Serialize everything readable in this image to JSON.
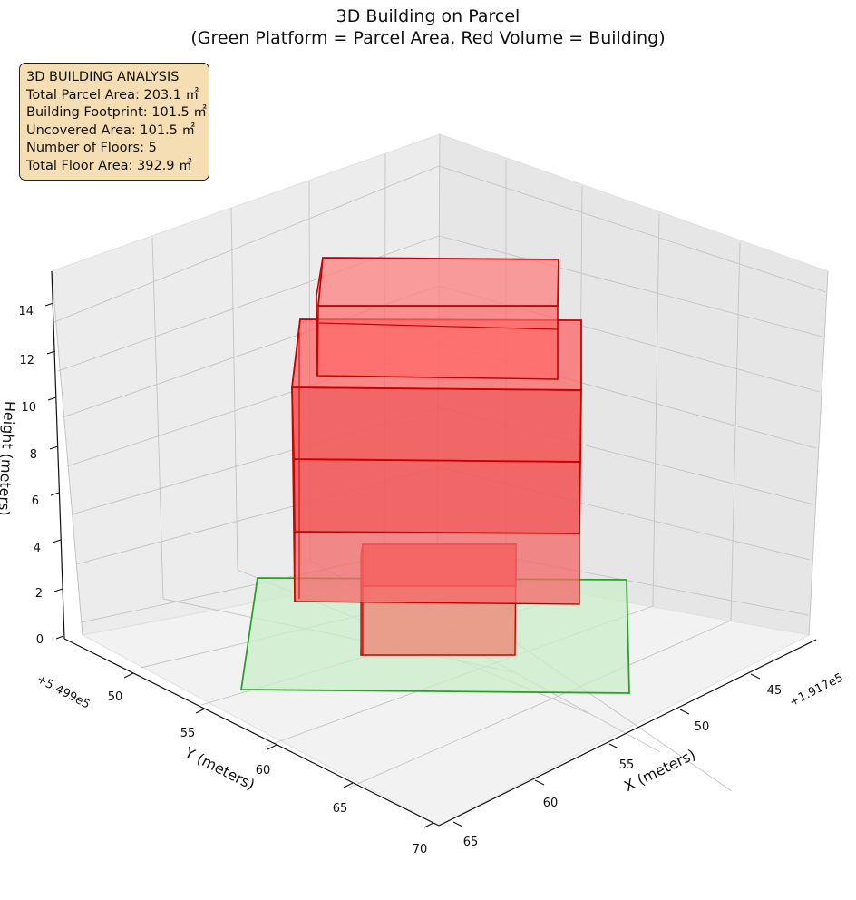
{
  "chart_data": {
    "type": "3d-bar",
    "title": "3D Building on Parcel",
    "subtitle": "(Green Platform = Parcel Area, Red Volume = Building)",
    "xlabel": "X (meters)",
    "ylabel": "Y (meters)",
    "zlabel": "Height (meters)",
    "x_offset_text": "+1.917e5",
    "y_offset_text": "+5.499e5",
    "x_ticks": [
      "45",
      "50",
      "55",
      "60",
      "65"
    ],
    "y_ticks": [
      "50",
      "55",
      "60",
      "65",
      "70"
    ],
    "z_ticks": [
      "0",
      "2",
      "4",
      "6",
      "8",
      "10",
      "12",
      "14"
    ],
    "grid": true,
    "info_box": {
      "heading": "3D BUILDING ANALYSIS",
      "lines": [
        "Total Parcel Area: 203.1 ㎡",
        "Building Footprint: 101.5 ㎡",
        "Uncovered Area: 101.5 ㎡",
        "Number of Floors: 5",
        "Total Floor Area: 392.9 ㎡"
      ]
    },
    "parcel": {
      "label": "Parcel Area",
      "color": "#2ca02c",
      "fill": "#c9eec9"
    },
    "building": {
      "label": "Building",
      "color": "#dd0000",
      "floors": [
        {
          "floor": 1,
          "z_bottom": 0,
          "z_top": 3
        },
        {
          "floor": 2,
          "z_bottom": 3,
          "z_top": 6
        },
        {
          "floor": 3,
          "z_bottom": 6,
          "z_top": 9
        },
        {
          "floor": 4,
          "z_bottom": 9,
          "z_top": 12
        },
        {
          "floor": 5,
          "z_bottom": 12,
          "z_top": 15
        }
      ]
    }
  }
}
